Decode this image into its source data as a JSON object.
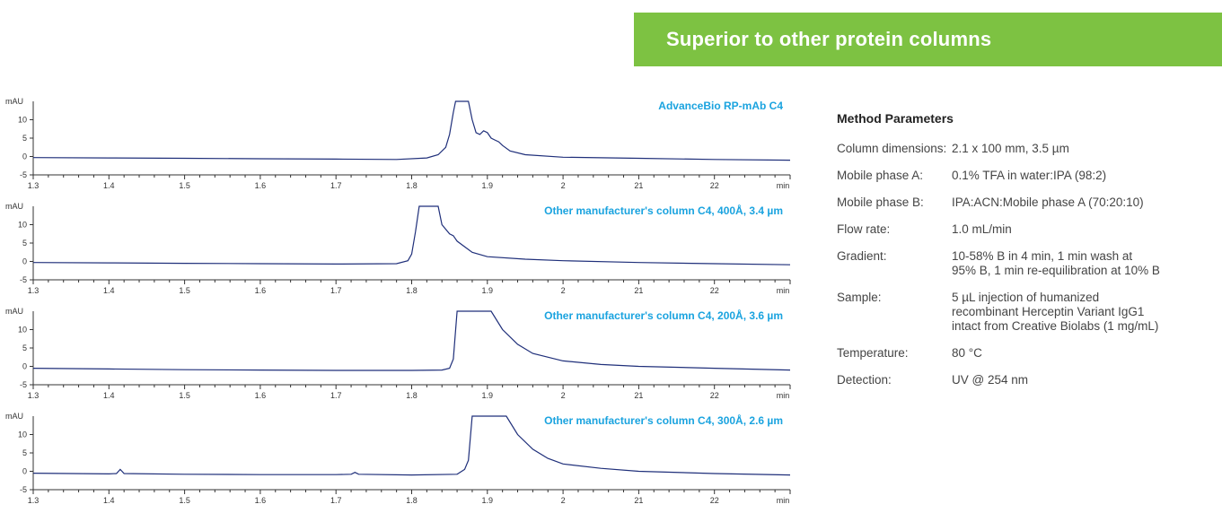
{
  "banner": {
    "title": "Superior to other protein columns",
    "color": "#7dc242"
  },
  "params": {
    "title": "Method Parameters",
    "rows": [
      {
        "label": "Column dimensions:",
        "value": "2.1 x 100 mm, 3.5 µm"
      },
      {
        "label": "Mobile phase A:",
        "value": "0.1% TFA in water:IPA (98:2)"
      },
      {
        "label": "Mobile phase B:",
        "value": "IPA:ACN:Mobile phase A (70:20:10)"
      },
      {
        "label": "Flow rate:",
        "value": "1.0 mL/min"
      },
      {
        "label": "Gradient:",
        "value": "10-58% B in 4 min, 1 min wash at\n95% B, 1 min re-equilibration at 10% B"
      },
      {
        "label": "Sample:",
        "value": "5 µL injection of humanized\nrecombinant Herceptin Variant IgG1\nintact from Creative Biolabs  (1 mg/mL)"
      },
      {
        "label": "Temperature:",
        "value": "80 °C"
      },
      {
        "label": "Detection:",
        "value": "UV @ 254 nm"
      }
    ]
  },
  "chart_data": [
    {
      "type": "line",
      "label": "AdvanceBio RP-mAb C4",
      "ylabel": "mAU",
      "xunit": "min",
      "xticks": [
        "1.3",
        "1.4",
        "1.5",
        "1.6",
        "1.7",
        "1.8",
        "1.9",
        "2",
        "21",
        "22"
      ],
      "yticks": [
        "-5",
        "0",
        "5",
        "10"
      ],
      "ylim": [
        -5,
        15
      ],
      "xlim": [
        1.3,
        2.3
      ],
      "line_color": "#1f2f7a",
      "label_color": "#1aa3df",
      "x": [
        1.3,
        1.4,
        1.5,
        1.6,
        1.7,
        1.78,
        1.82,
        1.835,
        1.845,
        1.85,
        1.855,
        1.858,
        1.875,
        1.88,
        1.885,
        1.89,
        1.895,
        1.9,
        1.905,
        1.91,
        1.915,
        1.92,
        1.93,
        1.95,
        2.0,
        2.1,
        2.2,
        2.3
      ],
      "y": [
        -0.3,
        -0.4,
        -0.5,
        -0.6,
        -0.7,
        -0.8,
        -0.4,
        0.5,
        2.5,
        6,
        12,
        15,
        15,
        10,
        6.5,
        6,
        7,
        6.5,
        5,
        4.5,
        4,
        3,
        1.5,
        0.5,
        -0.2,
        -0.5,
        -0.8,
        -1.0
      ]
    },
    {
      "type": "line",
      "label": "Other manufacturer's column C4, 400Å, 3.4 µm",
      "ylabel": "mAU",
      "xunit": "min",
      "xticks": [
        "1.3",
        "1.4",
        "1.5",
        "1.6",
        "1.7",
        "1.8",
        "1.9",
        "2",
        "21",
        "22"
      ],
      "yticks": [
        "-5",
        "0",
        "5",
        "10"
      ],
      "ylim": [
        -5,
        15
      ],
      "xlim": [
        1.3,
        2.3
      ],
      "line_color": "#1f2f7a",
      "label_color": "#1aa3df",
      "x": [
        1.3,
        1.4,
        1.5,
        1.6,
        1.7,
        1.78,
        1.795,
        1.8,
        1.805,
        1.81,
        1.835,
        1.84,
        1.85,
        1.855,
        1.86,
        1.87,
        1.88,
        1.9,
        1.95,
        2.0,
        2.1,
        2.2,
        2.3
      ],
      "y": [
        -0.3,
        -0.4,
        -0.5,
        -0.6,
        -0.7,
        -0.6,
        0.2,
        2,
        8,
        15,
        15,
        10,
        7.5,
        7,
        5.5,
        4,
        2.5,
        1.3,
        0.6,
        0.2,
        -0.3,
        -0.6,
        -0.9
      ]
    },
    {
      "type": "line",
      "label": "Other manufacturer's column C4, 200Å, 3.6 µm",
      "ylabel": "mAU",
      "xunit": "min",
      "xticks": [
        "1.3",
        "1.4",
        "1.5",
        "1.6",
        "1.7",
        "1.8",
        "1.9",
        "2",
        "21",
        "22"
      ],
      "yticks": [
        "-5",
        "0",
        "5",
        "10"
      ],
      "ylim": [
        -5,
        15
      ],
      "xlim": [
        1.3,
        2.3
      ],
      "line_color": "#1f2f7a",
      "label_color": "#1aa3df",
      "x": [
        1.3,
        1.4,
        1.5,
        1.6,
        1.7,
        1.8,
        1.84,
        1.85,
        1.855,
        1.86,
        1.905,
        1.92,
        1.94,
        1.96,
        2.0,
        2.05,
        2.1,
        2.2,
        2.3
      ],
      "y": [
        -0.5,
        -0.7,
        -0.9,
        -1.0,
        -1.1,
        -1.1,
        -1.0,
        -0.5,
        2,
        15,
        15,
        10,
        6,
        3.5,
        1.5,
        0.5,
        0,
        -0.5,
        -1.0
      ]
    },
    {
      "type": "line",
      "label": "Other manufacturer's column C4, 300Å, 2.6 µm",
      "ylabel": "mAU",
      "xunit": "min",
      "xticks": [
        "1.3",
        "1.4",
        "1.5",
        "1.6",
        "1.7",
        "1.8",
        "1.9",
        "2",
        "21",
        "22"
      ],
      "yticks": [
        "-5",
        "0",
        "5",
        "10"
      ],
      "ylim": [
        -5,
        15
      ],
      "xlim": [
        1.3,
        2.3
      ],
      "line_color": "#1f2f7a",
      "label_color": "#1aa3df",
      "x": [
        1.3,
        1.4,
        1.41,
        1.415,
        1.42,
        1.5,
        1.6,
        1.7,
        1.72,
        1.725,
        1.73,
        1.8,
        1.86,
        1.87,
        1.875,
        1.88,
        1.925,
        1.94,
        1.96,
        1.98,
        2.0,
        2.05,
        2.1,
        2.2,
        2.3
      ],
      "y": [
        -0.5,
        -0.7,
        -0.6,
        0.5,
        -0.6,
        -0.8,
        -0.9,
        -0.9,
        -0.8,
        -0.3,
        -0.8,
        -1.0,
        -0.8,
        0.5,
        3,
        15,
        15,
        10,
        6,
        3.5,
        2,
        0.8,
        0,
        -0.6,
        -1.0
      ]
    }
  ]
}
